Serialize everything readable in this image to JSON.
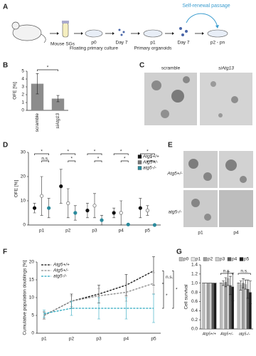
{
  "panels": [
    "A",
    "B",
    "C",
    "D",
    "E",
    "F",
    "G"
  ],
  "diagram": {
    "loop_label": "Self-renewal passage",
    "steps": [
      {
        "label": "Mouse SGs"
      },
      {
        "label": "p0",
        "sublabel": "Floating primary culture"
      },
      {
        "label": "Day 7"
      },
      {
        "label": "p1",
        "sublabel": "Primary organoids"
      },
      {
        "label": "Day 7"
      },
      {
        "label": "p2 - pn"
      }
    ]
  },
  "images_c": {
    "columns": [
      "scramble",
      "siAtg13"
    ]
  },
  "images_e": {
    "rows": [
      "Atg5+/-",
      "atg5-/-"
    ],
    "columns": [
      "p1",
      "p4"
    ]
  },
  "chart_data": [
    {
      "type": "bar",
      "ylabel": "OFE [%]",
      "categories": [
        "scramble",
        "siAtg13"
      ],
      "values": [
        3.4,
        1.5
      ],
      "errors": [
        1.3,
        0.4
      ],
      "color": "#8c8c8c",
      "ylim": [
        0,
        5
      ],
      "yticks": [
        0,
        1,
        2,
        3,
        4,
        5
      ],
      "annotations": [
        "*"
      ]
    },
    {
      "type": "dot",
      "ylabel": "OFE [%]",
      "categories": [
        "p1",
        "p2",
        "p3",
        "p4",
        "p5"
      ],
      "series": [
        {
          "name": "Atg5+/+",
          "color": "#111111",
          "values": [
            7,
            16,
            6,
            5,
            7
          ],
          "errors": [
            2,
            7,
            3,
            2,
            4
          ]
        },
        {
          "name": "Atg5+/-",
          "color": "#777777",
          "values": [
            12,
            9,
            8,
            5,
            6
          ],
          "errors": [
            8,
            6,
            5,
            5,
            2
          ]
        },
        {
          "name": "atg5-/-",
          "color": "#2a8a9c",
          "values": [
            7,
            5,
            2,
            0.2,
            0
          ],
          "errors": [
            4,
            3,
            2,
            0.3,
            0
          ]
        }
      ],
      "ylim": [
        0,
        30
      ],
      "yticks": [
        0,
        10,
        20,
        30
      ],
      "legend": "upper right",
      "annotations": [
        "*",
        "n.s.",
        "*",
        "*",
        "*",
        "*",
        "*",
        "*",
        "*",
        "*"
      ]
    },
    {
      "type": "line",
      "ylabel": "Cumulative population doublings [%]",
      "categories": [
        "p1",
        "p2",
        "p3",
        "p4",
        "p5"
      ],
      "series": [
        {
          "name": "Atg5+/+",
          "color": "#111111",
          "values": [
            5,
            9,
            11,
            13.5,
            17.5
          ],
          "errors": [
            1,
            2,
            2.5,
            3,
            4
          ]
        },
        {
          "name": "Atg5+/-",
          "color": "#8a8a8a",
          "values": [
            5,
            9,
            10.5,
            11.5,
            14
          ],
          "errors": [
            1,
            1.5,
            2,
            2.5,
            3
          ]
        },
        {
          "name": "atg5-/-",
          "color": "#2aa8bf",
          "values": [
            5.5,
            7,
            7,
            7,
            7
          ],
          "errors": [
            1,
            2,
            3,
            3,
            4
          ]
        }
      ],
      "ylim": [
        0,
        20
      ],
      "yticks": [
        0,
        5,
        10,
        15,
        20
      ],
      "legend": "upper left",
      "annotations": [
        "n.s.",
        "*",
        "*"
      ]
    },
    {
      "type": "grouped-bar",
      "ylabel": "Cell survival",
      "categories": [
        "Atg5+/+",
        "Atg5+/-",
        "atg5-/-"
      ],
      "series": [
        {
          "name": "p0",
          "color": "#bdbdbd",
          "values": [
            1,
            1,
            1
          ],
          "errors": [
            0,
            0,
            0
          ]
        },
        {
          "name": "p1",
          "color": "#e6e6e6",
          "values": [
            1,
            1,
            0.95
          ],
          "errors": [
            0,
            0.05,
            0.1
          ]
        },
        {
          "name": "p2",
          "color": "#9e9e9e",
          "values": [
            1,
            1.02,
            1
          ],
          "errors": [
            0,
            0.1,
            0.1
          ]
        },
        {
          "name": "p3",
          "color": "#d0d0d0",
          "values": [
            1,
            1.1,
            0.97
          ],
          "errors": [
            0,
            0.15,
            0.1
          ]
        },
        {
          "name": "p4",
          "color": "#595959",
          "values": [
            1,
            0.95,
            0.87
          ],
          "errors": [
            0,
            0.2,
            0.2
          ]
        },
        {
          "name": "p5",
          "color": "#1a1a1a",
          "values": [
            1,
            0.92,
            0.8
          ],
          "errors": [
            0,
            0.3,
            0.25
          ]
        }
      ],
      "ylim": [
        0,
        1.4
      ],
      "yticks": [
        {
          "value": 0,
          "label": "0.0"
        },
        0.2,
        0.4,
        0.6,
        0.8,
        {
          "value": 1,
          "label": "1.0"
        },
        1.2,
        1.4
      ],
      "legend": "top",
      "annotations": [
        "n.s.",
        "n.s."
      ]
    }
  ]
}
